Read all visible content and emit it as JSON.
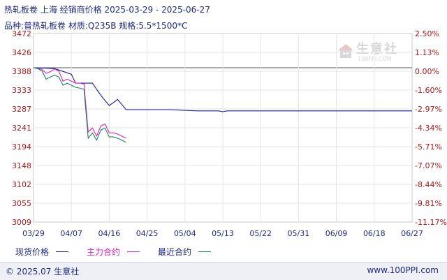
{
  "header": {
    "title": "热轧板卷 上海 经销商价格 2025-03-29 - 2025-06-27",
    "subtitle": "品种:普热轧板卷 材质:Q235B 规格:5.5*1500*C"
  },
  "watermark": {
    "text": "生意社",
    "url": "100PPI.COM"
  },
  "footer": {
    "left": "© 2025.07 生意社",
    "right": "www.100PPI.com"
  },
  "legend": {
    "spot": "现货价格",
    "main": "主力合约",
    "recent": "最近合约"
  },
  "chart_data": {
    "type": "line",
    "y_left_ticks": [
      "3472",
      "3426",
      "3388",
      "3333",
      "3287",
      "3241",
      "3194",
      "3148",
      "3102",
      "3055",
      "3009"
    ],
    "y_right_ticks": [
      "2.50%",
      "1.13%",
      "0.00%",
      "-1.60%",
      "-2.97%",
      "-4.34%",
      "-5.71%",
      "-7.07%",
      "-8.44%",
      "-9.81%",
      "-11.17%"
    ],
    "x_ticks": [
      "03/29",
      "04/07",
      "04/16",
      "04/25",
      "05/04",
      "05/13",
      "05/22",
      "05/31",
      "06/09",
      "06/18",
      "06/27"
    ],
    "ylim": [
      3009,
      3472
    ],
    "baseline": 3388,
    "n_points": 91,
    "series": [
      {
        "name": "现货价格",
        "color": "#1a1aa0",
        "points": [
          [
            0,
            3388
          ],
          [
            5,
            3386
          ],
          [
            9,
            3372
          ],
          [
            10,
            3350
          ],
          [
            12,
            3350
          ],
          [
            14,
            3350
          ],
          [
            16,
            3320
          ],
          [
            18,
            3295
          ],
          [
            20,
            3310
          ],
          [
            22,
            3285
          ],
          [
            32,
            3285
          ],
          [
            39,
            3282
          ],
          [
            40,
            3282
          ],
          [
            41,
            3282
          ],
          [
            42,
            3282
          ],
          [
            43,
            3282
          ],
          [
            44,
            3282
          ],
          [
            45,
            3280
          ],
          [
            46,
            3282
          ],
          [
            47,
            3282
          ],
          [
            48,
            3282
          ],
          [
            49,
            3282
          ],
          [
            50,
            3282
          ],
          [
            51,
            3282
          ],
          [
            52,
            3282
          ],
          [
            53,
            3282
          ],
          [
            54,
            3282
          ],
          [
            55,
            3282
          ],
          [
            56,
            3282
          ],
          [
            57,
            3282
          ],
          [
            58,
            3282
          ],
          [
            59,
            3282
          ],
          [
            60,
            3282
          ],
          [
            61,
            3282
          ],
          [
            62,
            3282
          ],
          [
            63,
            3282
          ],
          [
            64,
            3282
          ],
          [
            65,
            3282
          ],
          [
            66,
            3282
          ],
          [
            67,
            3282
          ],
          [
            68,
            3282
          ],
          [
            69,
            3282
          ],
          [
            70,
            3282
          ],
          [
            71,
            3282
          ],
          [
            72,
            3282
          ],
          [
            73,
            3282
          ],
          [
            74,
            3282
          ],
          [
            75,
            3282
          ],
          [
            76,
            3282
          ],
          [
            77,
            3282
          ],
          [
            78,
            3282
          ],
          [
            79,
            3282
          ],
          [
            80,
            3282
          ],
          [
            81,
            3282
          ],
          [
            82,
            3282
          ],
          [
            83,
            3282
          ],
          [
            84,
            3282
          ],
          [
            85,
            3282
          ],
          [
            86,
            3282
          ],
          [
            87,
            3282
          ],
          [
            88,
            3282
          ],
          [
            89,
            3282
          ],
          [
            90,
            3282
          ]
        ]
      },
      {
        "name": "主力合约",
        "color": "#e020c8",
        "points": [
          [
            0,
            3388
          ],
          [
            1,
            3386
          ],
          [
            2,
            3384
          ],
          [
            3,
            3374
          ],
          [
            4,
            3378
          ],
          [
            5,
            3385
          ],
          [
            6,
            3380
          ],
          [
            7,
            3355
          ],
          [
            8,
            3360
          ],
          [
            9,
            3355
          ],
          [
            10,
            3350
          ],
          [
            11,
            3350
          ],
          [
            12,
            3348
          ],
          [
            13,
            3230
          ],
          [
            14,
            3240
          ],
          [
            15,
            3220
          ],
          [
            16,
            3245
          ],
          [
            17,
            3250
          ],
          [
            18,
            3228
          ],
          [
            19,
            3228
          ],
          [
            20,
            3225
          ],
          [
            21,
            3220
          ],
          [
            22,
            3215
          ]
        ]
      },
      {
        "name": "最近合约",
        "color": "#208060",
        "points": [
          [
            0,
            3388
          ],
          [
            1,
            3386
          ],
          [
            2,
            3380
          ],
          [
            3,
            3360
          ],
          [
            4,
            3365
          ],
          [
            5,
            3370
          ],
          [
            6,
            3365
          ],
          [
            7,
            3345
          ],
          [
            8,
            3350
          ],
          [
            9,
            3345
          ],
          [
            10,
            3340
          ],
          [
            11,
            3338
          ],
          [
            12,
            3335
          ],
          [
            13,
            3215
          ],
          [
            14,
            3228
          ],
          [
            15,
            3210
          ],
          [
            16,
            3235
          ],
          [
            17,
            3240
          ],
          [
            18,
            3218
          ],
          [
            19,
            3218
          ],
          [
            20,
            3215
          ],
          [
            21,
            3210
          ],
          [
            22,
            3205
          ]
        ]
      }
    ]
  }
}
